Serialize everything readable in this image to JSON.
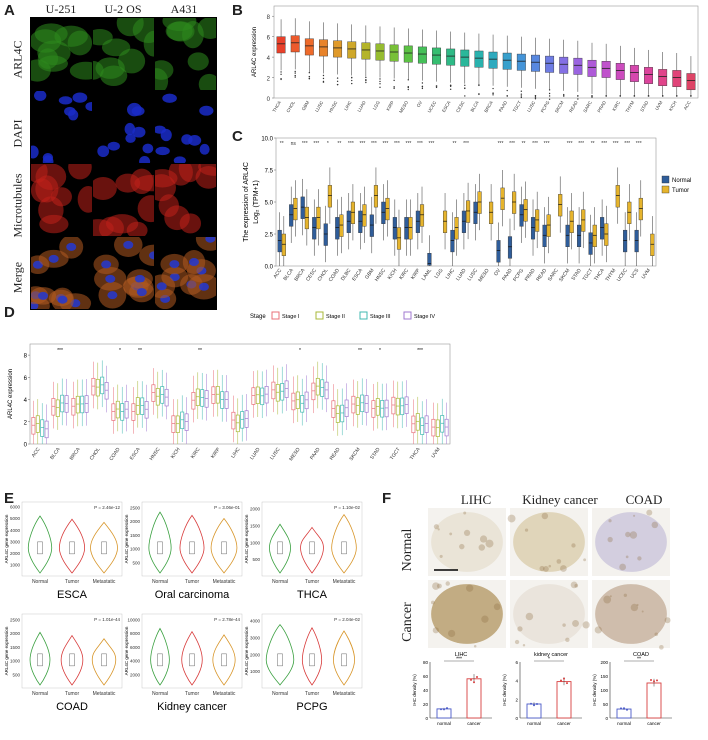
{
  "panelA": {
    "letter": "A",
    "columns": [
      "U-251",
      "U-2 OS",
      "A431"
    ],
    "rows": [
      "ARL4C",
      "DAPI",
      "Microtubules",
      "Merge"
    ],
    "colors": {
      "ARL4C": "#2e8b1e",
      "DAPI": "#1a2cc8",
      "Microtubules": "#c0201a",
      "Merge": "#4a6a30"
    }
  },
  "panelB": {
    "letter": "B",
    "ylabel": "ARL4C expression",
    "yticks": [
      "0",
      "2",
      "4",
      "6",
      "8"
    ],
    "categories": [
      "THCA",
      "CHOL",
      "GBM",
      "LUSC",
      "HNSC",
      "LIHC",
      "LUAD",
      "LGG",
      "KIRP",
      "MESO",
      "OV",
      "UCEC",
      "ESCA",
      "CESC",
      "BLCA",
      "BRCA",
      "PAAD",
      "TGCT",
      "LUSC",
      "PCPG",
      "SKCM",
      "READ",
      "SARC",
      "PRAD",
      "KIRC",
      "THYM",
      "STAD",
      "UVM",
      "KICH",
      "ACC"
    ],
    "medians": [
      5.3,
      5.4,
      5.1,
      5.0,
      4.9,
      4.8,
      4.7,
      4.6,
      4.5,
      4.4,
      4.3,
      4.2,
      4.1,
      4.0,
      3.9,
      3.8,
      3.7,
      3.6,
      3.5,
      3.4,
      3.3,
      3.2,
      3.0,
      2.9,
      2.7,
      2.5,
      2.3,
      2.1,
      2.0,
      1.7
    ],
    "colors": [
      "#e8402a",
      "#ec5a2c",
      "#ee6a2a",
      "#e8832a",
      "#e09a2a",
      "#cfa82a",
      "#b4b42a",
      "#96bc30",
      "#78c038",
      "#5cc244",
      "#44c058",
      "#36bd70",
      "#2eba86",
      "#2ab79a",
      "#2ab2ae",
      "#2eaabe",
      "#38a0cc",
      "#4494d8",
      "#5888e0",
      "#6e7ce4",
      "#8470e4",
      "#9a64e0",
      "#ae5ad8",
      "#c052cc",
      "#cc4cbe",
      "#d648ae",
      "#dc449c",
      "#e0448a",
      "#e04478",
      "#de4466"
    ]
  },
  "panelC": {
    "letter": "C",
    "ylabel_line1": "The expression of ARL4C",
    "ylabel_line2": "Log₂ (TPM+1)",
    "yticks": [
      "0.0",
      "2.5",
      "5.0",
      "7.5",
      "10.0"
    ],
    "legend": [
      "Normal",
      "Tumor"
    ],
    "legend_colors": [
      "#2f5d9a",
      "#e6b42c"
    ],
    "categories": [
      "ACC",
      "BLCA",
      "BRCA",
      "CESC",
      "CHOL",
      "COAD",
      "DLBC",
      "ESCA",
      "GBM",
      "HNSC",
      "KICH",
      "KIRC",
      "KIRP",
      "LAML",
      "LGG",
      "LIHC",
      "LUAD",
      "LUSC",
      "MESO",
      "OV",
      "PAAD",
      "PCPG",
      "PRAD",
      "READ",
      "SARC",
      "SKCM",
      "STAD",
      "TGCT",
      "THCA",
      "THYM",
      "UCEC",
      "UCS",
      "UVM"
    ],
    "normal": [
      2.0,
      4.0,
      4.6,
      3.0,
      2.5,
      3.0,
      3.5,
      3.5,
      3.2,
      4.2,
      3.0,
      3.0,
      3.5,
      0.2,
      null,
      2.0,
      3.5,
      4.2,
      null,
      1.2,
      1.5,
      4.0,
      3.0,
      2.4,
      null,
      2.4,
      2.4,
      1.8,
      3.0,
      null,
      2.0,
      2.0,
      null
    ],
    "tumor": [
      1.7,
      4.5,
      3.8,
      3.8,
      5.5,
      3.2,
      4.2,
      4.0,
      5.5,
      4.5,
      2.2,
      3.0,
      4.0,
      null,
      3.5,
      3.0,
      4.3,
      5.0,
      4.2,
      5.3,
      5.0,
      4.4,
      3.6,
      3.2,
      4.8,
      3.5,
      3.6,
      2.4,
      2.5,
      5.5,
      4.2,
      4.5,
      1.7
    ],
    "sig": [
      "**",
      "ns",
      "***",
      "***",
      "*",
      "**",
      "***",
      "***",
      "***",
      "***",
      "***",
      "***",
      "***",
      "***",
      "",
      "**",
      "***",
      "",
      "",
      "***",
      "***",
      "**",
      "***",
      "***",
      "",
      "***",
      "***",
      "**",
      "***",
      "***",
      "***",
      "***",
      ""
    ]
  },
  "panelD": {
    "letter": "D",
    "stage_title": "Stage",
    "legend": [
      "Stage I",
      "Stage II",
      "Stage III",
      "Stage IV"
    ],
    "legend_colors": [
      "#e8707a",
      "#a8b838",
      "#40b8b0",
      "#a07ad0"
    ],
    "ylabel": "ARL4C expression",
    "yticks": [
      "0",
      "2",
      "4",
      "6",
      "8"
    ],
    "categories": [
      "ACC",
      "BLCA",
      "BRCA",
      "CHOL",
      "COAD",
      "ESCA",
      "HNSC",
      "KICH",
      "KIRC",
      "KIRP",
      "LIHC",
      "LUAD",
      "LUSC",
      "MESO",
      "PAAD",
      "READ",
      "SKCM",
      "STAD",
      "TGCT",
      "THCA",
      "UVM"
    ],
    "medians": [
      1.6,
      3.5,
      3.7,
      5.1,
      3.0,
      3.2,
      4.5,
      1.9,
      4.2,
      4.3,
      2.2,
      4.6,
      4.7,
      3.9,
      5.0,
      3.0,
      3.6,
      3.4,
      3.3,
      1.8,
      1.7
    ],
    "sig": [
      "",
      "***",
      "",
      "",
      "*",
      "**",
      "",
      "",
      "**",
      "",
      "",
      "",
      "",
      "*",
      "",
      "",
      "**",
      "*",
      "",
      "***",
      ""
    ]
  },
  "panelE": {
    "letter": "E",
    "groups": [
      "Normal",
      "Tumor",
      "Metastatic"
    ],
    "group_colors": [
      "#3aa040",
      "#d83a3a",
      "#d8962a"
    ],
    "ylabel": "ARL4C gene expression",
    "plots": [
      {
        "title": "ESCA",
        "pvalue": "P = 2.46e-12",
        "yticks": [
          "1000",
          "2000",
          "3000",
          "4000",
          "5000",
          "6000"
        ]
      },
      {
        "title": "Oral carcinoma",
        "pvalue": "P = 3.06e-01",
        "yticks": [
          "500",
          "1000",
          "1500",
          "2000",
          "2500"
        ]
      },
      {
        "title": "THCA",
        "pvalue": "P = 1.10e-02",
        "yticks": [
          "500",
          "1000",
          "1500",
          "2000"
        ]
      },
      {
        "title": "COAD",
        "pvalue": "P = 1.01e-44",
        "yticks": [
          "500",
          "1000",
          "1500",
          "2000",
          "2500"
        ]
      },
      {
        "title": "Kidney cancer",
        "pvalue": "P = 2.78e-44",
        "yticks": [
          "2000",
          "4000",
          "6000",
          "8000",
          "10000"
        ]
      },
      {
        "title": "PCPG",
        "pvalue": "P = 2.04e-02",
        "yticks": [
          "1000",
          "2000",
          "3000",
          "4000"
        ]
      }
    ]
  },
  "panelF": {
    "letter": "F",
    "columns": [
      "LIHC",
      "Kidney cancer",
      "COAD"
    ],
    "rows": [
      "Normal",
      "Cancer"
    ],
    "ylabel": "IHC density (%)",
    "xlabels": [
      "normal",
      "cancer"
    ],
    "bars": [
      {
        "title": "LIHC",
        "normal": 13,
        "cancer": 56,
        "sig": "***",
        "ymax": 80,
        "yticks": [
          "0",
          "20",
          "40",
          "60",
          "80"
        ]
      },
      {
        "title": "kidney cancer",
        "normal": 1.5,
        "cancer": 3.9,
        "sig": "*",
        "ymax": 6,
        "yticks": [
          "0",
          "2",
          "4",
          "6"
        ]
      },
      {
        "title": "COAD",
        "normal": 32,
        "cancer": 125,
        "sig": "**",
        "ymax": 200,
        "yticks": [
          "0",
          "50",
          "100",
          "150",
          "200"
        ]
      }
    ]
  }
}
